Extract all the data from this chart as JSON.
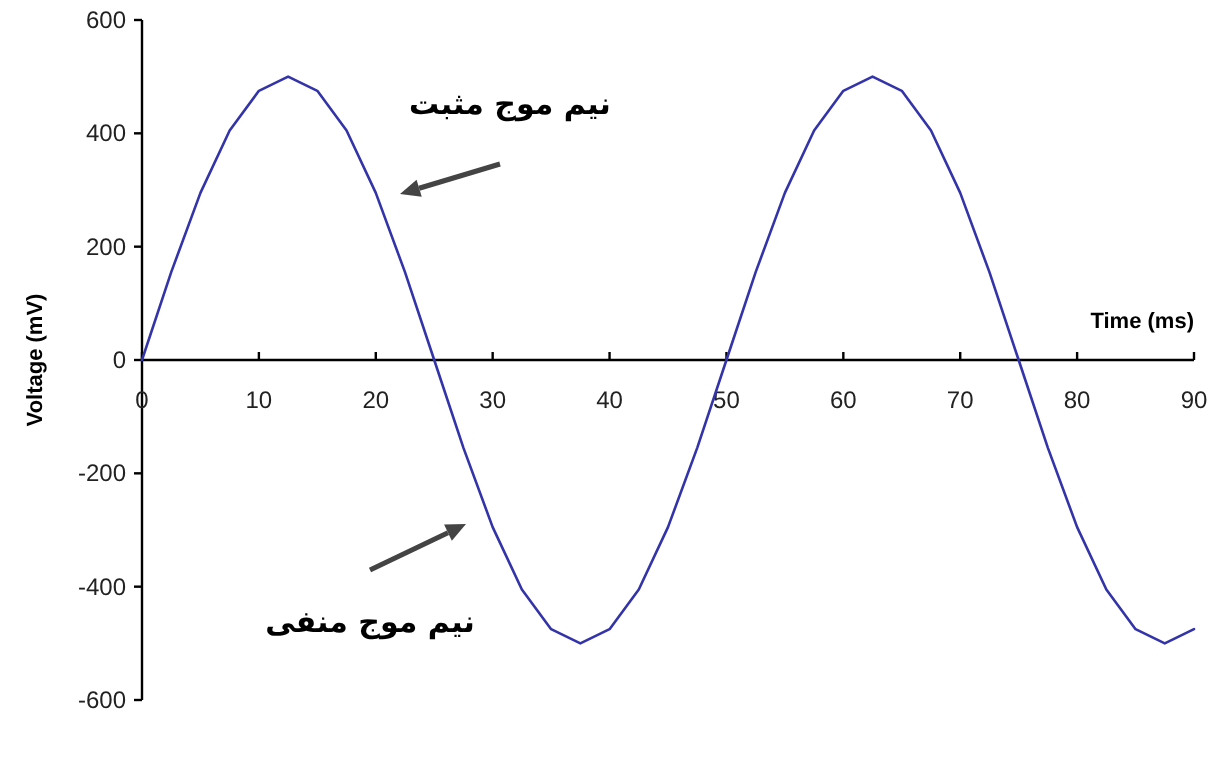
{
  "chart_data": {
    "type": "line",
    "xlabel": "Time (ms)",
    "ylabel": "Voltage (mV)",
    "x": [
      0,
      2.5,
      5,
      7.5,
      10,
      12.5,
      15,
      17.5,
      20,
      22.5,
      25,
      27.5,
      30,
      32.5,
      35,
      37.5,
      40,
      42.5,
      45,
      47.5,
      50,
      52.5,
      55,
      57.5,
      60,
      62.5,
      65,
      67.5,
      70,
      72.5,
      75,
      77.5,
      80,
      82.5,
      85,
      87.5,
      90
    ],
    "series": [
      {
        "color": "#3333aa",
        "values": [
          0,
          155,
          295,
          405,
          475,
          500,
          475,
          405,
          295,
          155,
          0,
          -155,
          -295,
          -405,
          -475,
          -500,
          -475,
          -405,
          -295,
          -155,
          0,
          155,
          295,
          405,
          475,
          500,
          475,
          405,
          295,
          155,
          0,
          -155,
          -295,
          -405,
          -475,
          -500,
          -475
        ]
      }
    ],
    "xlim": [
      0,
      90
    ],
    "ylim": [
      -600,
      600
    ],
    "xticks": [
      0,
      10,
      20,
      30,
      40,
      50,
      60,
      70,
      80,
      90
    ],
    "yticks": [
      -600,
      -400,
      -200,
      0,
      200,
      400,
      600
    ],
    "grid": false,
    "marker": "none",
    "line_style": "solid",
    "annotations": [
      "نیم موج مثبت",
      "نیم موج منفی"
    ]
  }
}
